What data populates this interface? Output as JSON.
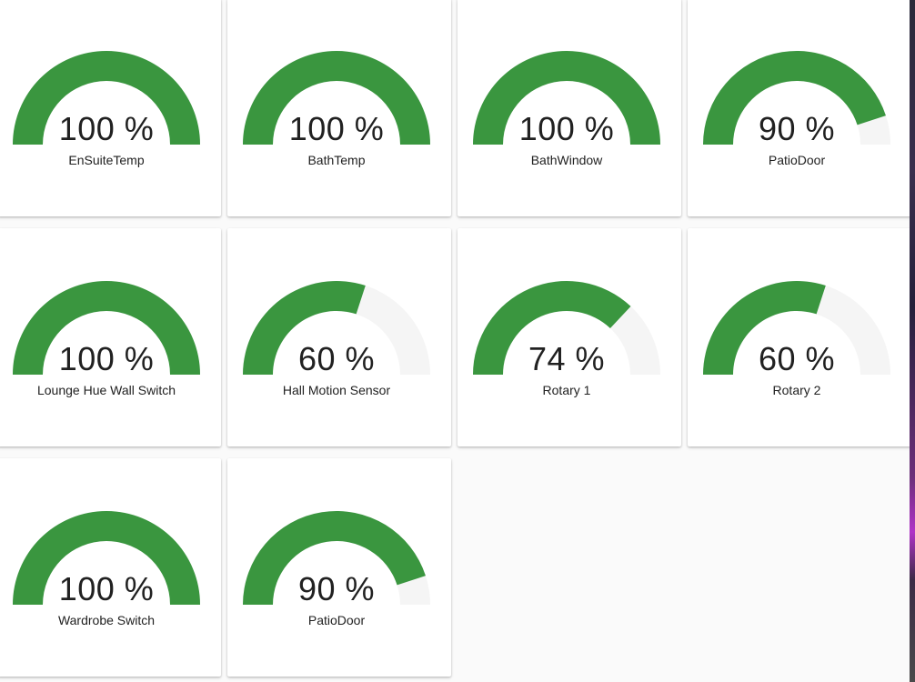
{
  "colors": {
    "gauge_fill": "#3a963f",
    "gauge_track": "#f5f5f5",
    "card_bg": "#ffffff",
    "page_bg": "#fafafa",
    "text": "#212121"
  },
  "cards": [
    {
      "value": 100,
      "value_text": "100 %",
      "label": "EnSuiteTemp"
    },
    {
      "value": 100,
      "value_text": "100 %",
      "label": "BathTemp"
    },
    {
      "value": 100,
      "value_text": "100 %",
      "label": "BathWindow"
    },
    {
      "value": 90,
      "value_text": "90 %",
      "label": "PatioDoor"
    },
    {
      "value": 100,
      "value_text": "100 %",
      "label": "Lounge Hue Wall Switch"
    },
    {
      "value": 60,
      "value_text": "60 %",
      "label": "Hall Motion Sensor"
    },
    {
      "value": 74,
      "value_text": "74 %",
      "label": "Rotary 1"
    },
    {
      "value": 60,
      "value_text": "60 %",
      "label": "Rotary 2"
    },
    {
      "value": 100,
      "value_text": "100 %",
      "label": "Wardrobe Switch"
    },
    {
      "value": 90,
      "value_text": "90 %",
      "label": "PatioDoor"
    }
  ]
}
